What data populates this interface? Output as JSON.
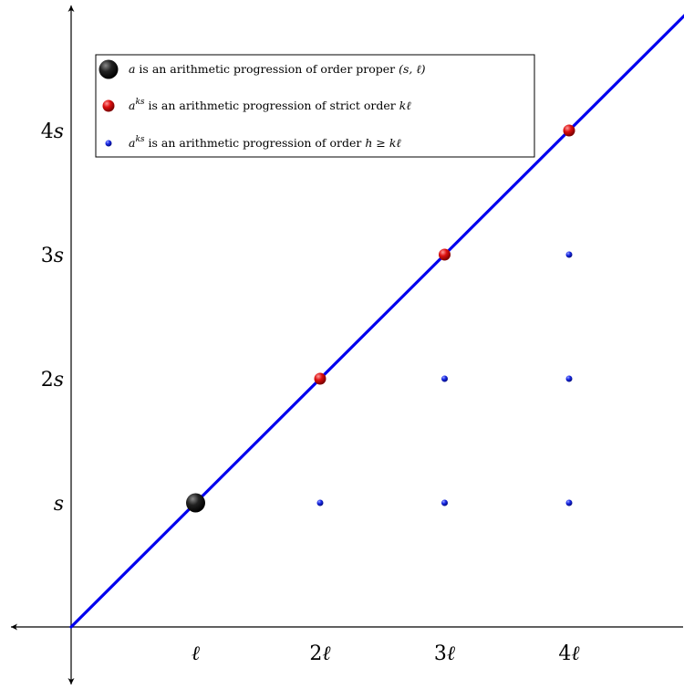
{
  "chart_data": {
    "type": "scatter",
    "title": "",
    "xlabel": "",
    "ylabel": "",
    "x_ticks": [
      {
        "value": 1,
        "label_num": "",
        "label_var": "ℓ"
      },
      {
        "value": 2,
        "label_num": "2",
        "label_var": "ℓ"
      },
      {
        "value": 3,
        "label_num": "3",
        "label_var": "ℓ"
      },
      {
        "value": 4,
        "label_num": "4",
        "label_var": "ℓ"
      }
    ],
    "y_ticks": [
      {
        "value": 1,
        "label_num": "",
        "label_var": "s"
      },
      {
        "value": 2,
        "label_num": "2",
        "label_var": "s"
      },
      {
        "value": 3,
        "label_num": "3",
        "label_var": "s"
      },
      {
        "value": 4,
        "label_num": "4",
        "label_var": "s"
      }
    ],
    "line": {
      "from": [
        0,
        0
      ],
      "to": [
        4.93,
        4.93
      ],
      "color": "#0000ee"
    },
    "series": [
      {
        "key": "black",
        "points": [
          {
            "x": 1,
            "y": 1
          }
        ],
        "color": "#000000",
        "legend": {
          "pre": "",
          "var": "a",
          "sup": "",
          "text": " is an arithmetic progression of order proper ",
          "math": "(s, ℓ)"
        }
      },
      {
        "key": "red",
        "points": [
          {
            "x": 2,
            "y": 2
          },
          {
            "x": 3,
            "y": 3
          },
          {
            "x": 4,
            "y": 4
          }
        ],
        "color": "#dd0000",
        "legend": {
          "pre": "",
          "var": "a",
          "sup": "ks",
          "text": " is an arithmetic progression of strict order ",
          "math": "kℓ"
        }
      },
      {
        "key": "blue",
        "points": [
          {
            "x": 2,
            "y": 1
          },
          {
            "x": 3,
            "y": 1
          },
          {
            "x": 4,
            "y": 1
          },
          {
            "x": 3,
            "y": 2
          },
          {
            "x": 4,
            "y": 2
          },
          {
            "x": 4,
            "y": 3
          }
        ],
        "color": "#1a1aee",
        "legend": {
          "pre": "",
          "var": "a",
          "sup": "ks",
          "text": " is an arithmetic progression of order ",
          "math": "h ≥ kℓ"
        }
      }
    ],
    "xlim": [
      -0.5,
      4.95
    ],
    "ylim": [
      -0.45,
      5.05
    ],
    "grid": false,
    "legend_position": "top-left"
  }
}
